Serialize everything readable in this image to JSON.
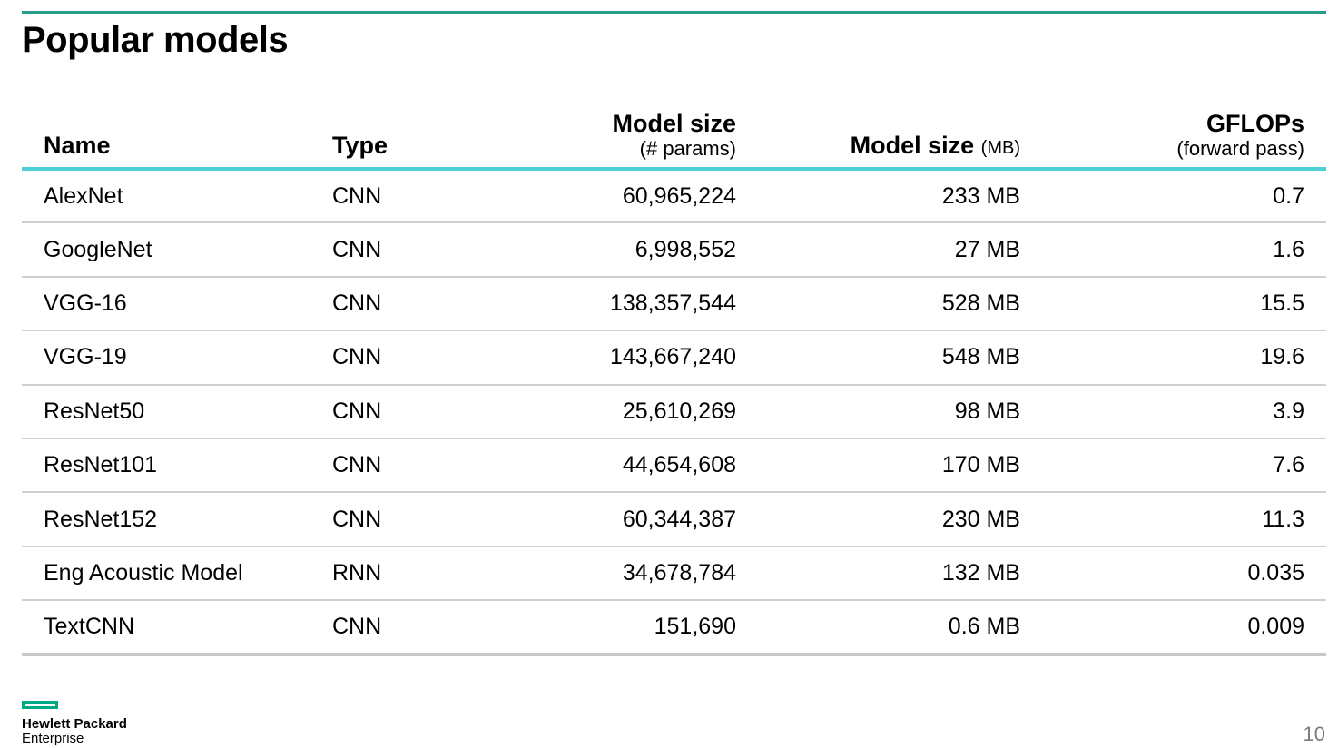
{
  "title": "Popular models",
  "table": {
    "headers": {
      "name": "Name",
      "type": "Type",
      "params_main": "Model size",
      "params_sub": "(# params)",
      "mb_main": "Model size",
      "mb_unit": "(MB)",
      "gflops_main": "GFLOPs",
      "gflops_sub": "(forward pass)"
    },
    "rows": [
      {
        "name": "AlexNet",
        "type": "CNN",
        "params": "60,965,224",
        "size_mb": "233 MB",
        "gflops": "0.7"
      },
      {
        "name": "GoogleNet",
        "type": "CNN",
        "params": "6,998,552",
        "size_mb": "27 MB",
        "gflops": "1.6"
      },
      {
        "name": "VGG-16",
        "type": "CNN",
        "params": "138,357,544",
        "size_mb": "528 MB",
        "gflops": "15.5"
      },
      {
        "name": "VGG-19",
        "type": "CNN",
        "params": "143,667,240",
        "size_mb": "548 MB",
        "gflops": "19.6"
      },
      {
        "name": "ResNet50",
        "type": "CNN",
        "params": "25,610,269",
        "size_mb": "98 MB",
        "gflops": "3.9"
      },
      {
        "name": "ResNet101",
        "type": "CNN",
        "params": "44,654,608",
        "size_mb": "170 MB",
        "gflops": "7.6"
      },
      {
        "name": "ResNet152",
        "type": "CNN",
        "params": "60,344,387",
        "size_mb": "230 MB",
        "gflops": "11.3"
      },
      {
        "name": "Eng Acoustic Model",
        "type": "RNN",
        "params": "34,678,784",
        "size_mb": "132 MB",
        "gflops": "0.035"
      },
      {
        "name": "TextCNN",
        "type": "CNN",
        "params": "151,690",
        "size_mb": "0.6 MB",
        "gflops": "0.009"
      }
    ]
  },
  "logo": {
    "line1": "Hewlett Packard",
    "line2": "Enterprise",
    "accent_color": "#01a982"
  },
  "page_number": "10"
}
